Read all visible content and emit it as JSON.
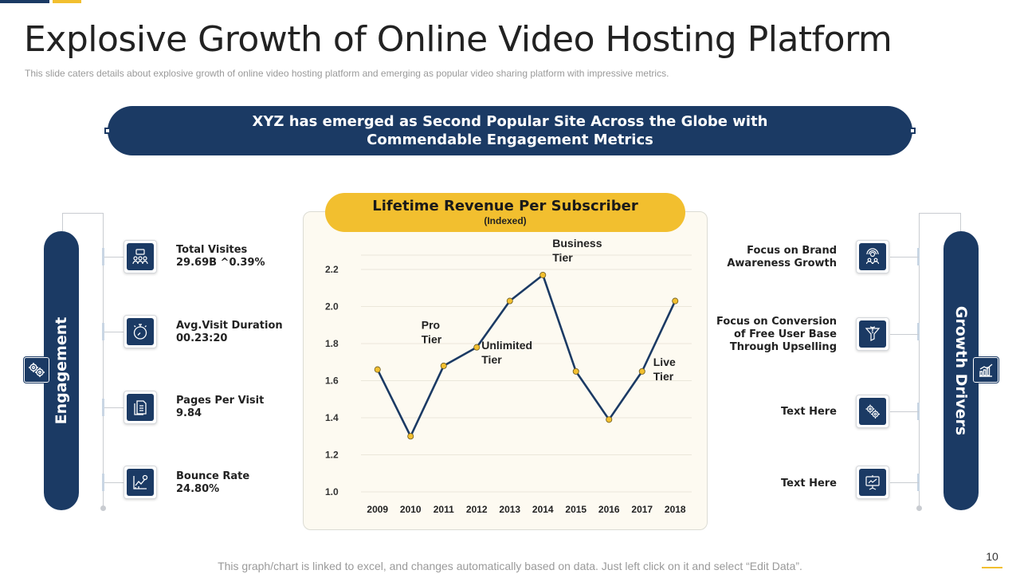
{
  "title": "Explosive Growth of Online Video Hosting Platform",
  "subtitle": "This slide caters details about explosive growth of online video hosting platform and emerging as popular video sharing platform with impressive metrics.",
  "banner": "XYZ has emerged as Second Popular Site Across the Globe with Commendable Engagement Metrics",
  "left_panel": {
    "label": "Engagement",
    "items": [
      {
        "label": "Total Visites",
        "value": "29.69B ^0.39%",
        "icon": "audience-icon"
      },
      {
        "label": "Avg.Visit Duration",
        "value": "00.23:20",
        "icon": "stopwatch-icon"
      },
      {
        "label": "Pages Per Visit",
        "value": "9.84",
        "icon": "document-pages-icon"
      },
      {
        "label": "Bounce Rate",
        "value": "24.80%",
        "icon": "bounce-chart-icon"
      }
    ]
  },
  "right_panel": {
    "label": "Growth Drivers",
    "items": [
      {
        "line1": "Focus on Brand",
        "line2": "Awareness Growth",
        "line3": "",
        "icon": "brand-awareness-icon"
      },
      {
        "line1": "Focus on Conversion",
        "line2": "of Free User Base",
        "line3": "Through Upselling",
        "icon": "conversion-icon"
      },
      {
        "line1": "Text Here",
        "line2": "",
        "line3": "",
        "icon": "gears-icon"
      },
      {
        "line1": "Text Here",
        "line2": "",
        "line3": "",
        "icon": "presentation-icon"
      }
    ]
  },
  "chart_header": {
    "title": "Lifetime Revenue Per Subscriber",
    "subtitle": "(Indexed)"
  },
  "chart_data": {
    "type": "line",
    "title": "Lifetime Revenue Per Subscriber",
    "subtitle": "(Indexed)",
    "x": [
      "2009",
      "2010",
      "2011",
      "2012",
      "2013",
      "2014",
      "2015",
      "2016",
      "2017",
      "2018"
    ],
    "series": [
      {
        "values": [
          1.66,
          1.3,
          1.68,
          1.78,
          2.03,
          2.17,
          1.65,
          1.39,
          1.65,
          2.03
        ]
      }
    ],
    "yticks": [
      "1.0",
      "1.2",
      "1.4",
      "1.6",
      "1.8",
      "2.0",
      "2.2"
    ],
    "ylim": [
      1.0,
      2.2
    ],
    "grid": true,
    "colors": {
      "line": "#1b3a64",
      "marker": "#f2bf2f"
    },
    "annotations": [
      {
        "lines": [
          "Pro",
          "Tier"
        ],
        "x": "2011",
        "y": 1.88
      },
      {
        "lines": [
          "Unlimited",
          "Tier"
        ],
        "x": "2012",
        "y": 1.77
      },
      {
        "lines": [
          "Business",
          "Tier"
        ],
        "x": "2014",
        "y": 2.32
      },
      {
        "lines": [
          "Live",
          "Tier"
        ],
        "x": "2017",
        "y": 1.68
      }
    ]
  },
  "footer": "This graph/chart is linked to excel, and changes automatically based on data. Just left click on it and select “Edit Data”.",
  "page_number": "10",
  "colors": {
    "navy": "#1b3a64",
    "gold": "#f2bf2f"
  }
}
